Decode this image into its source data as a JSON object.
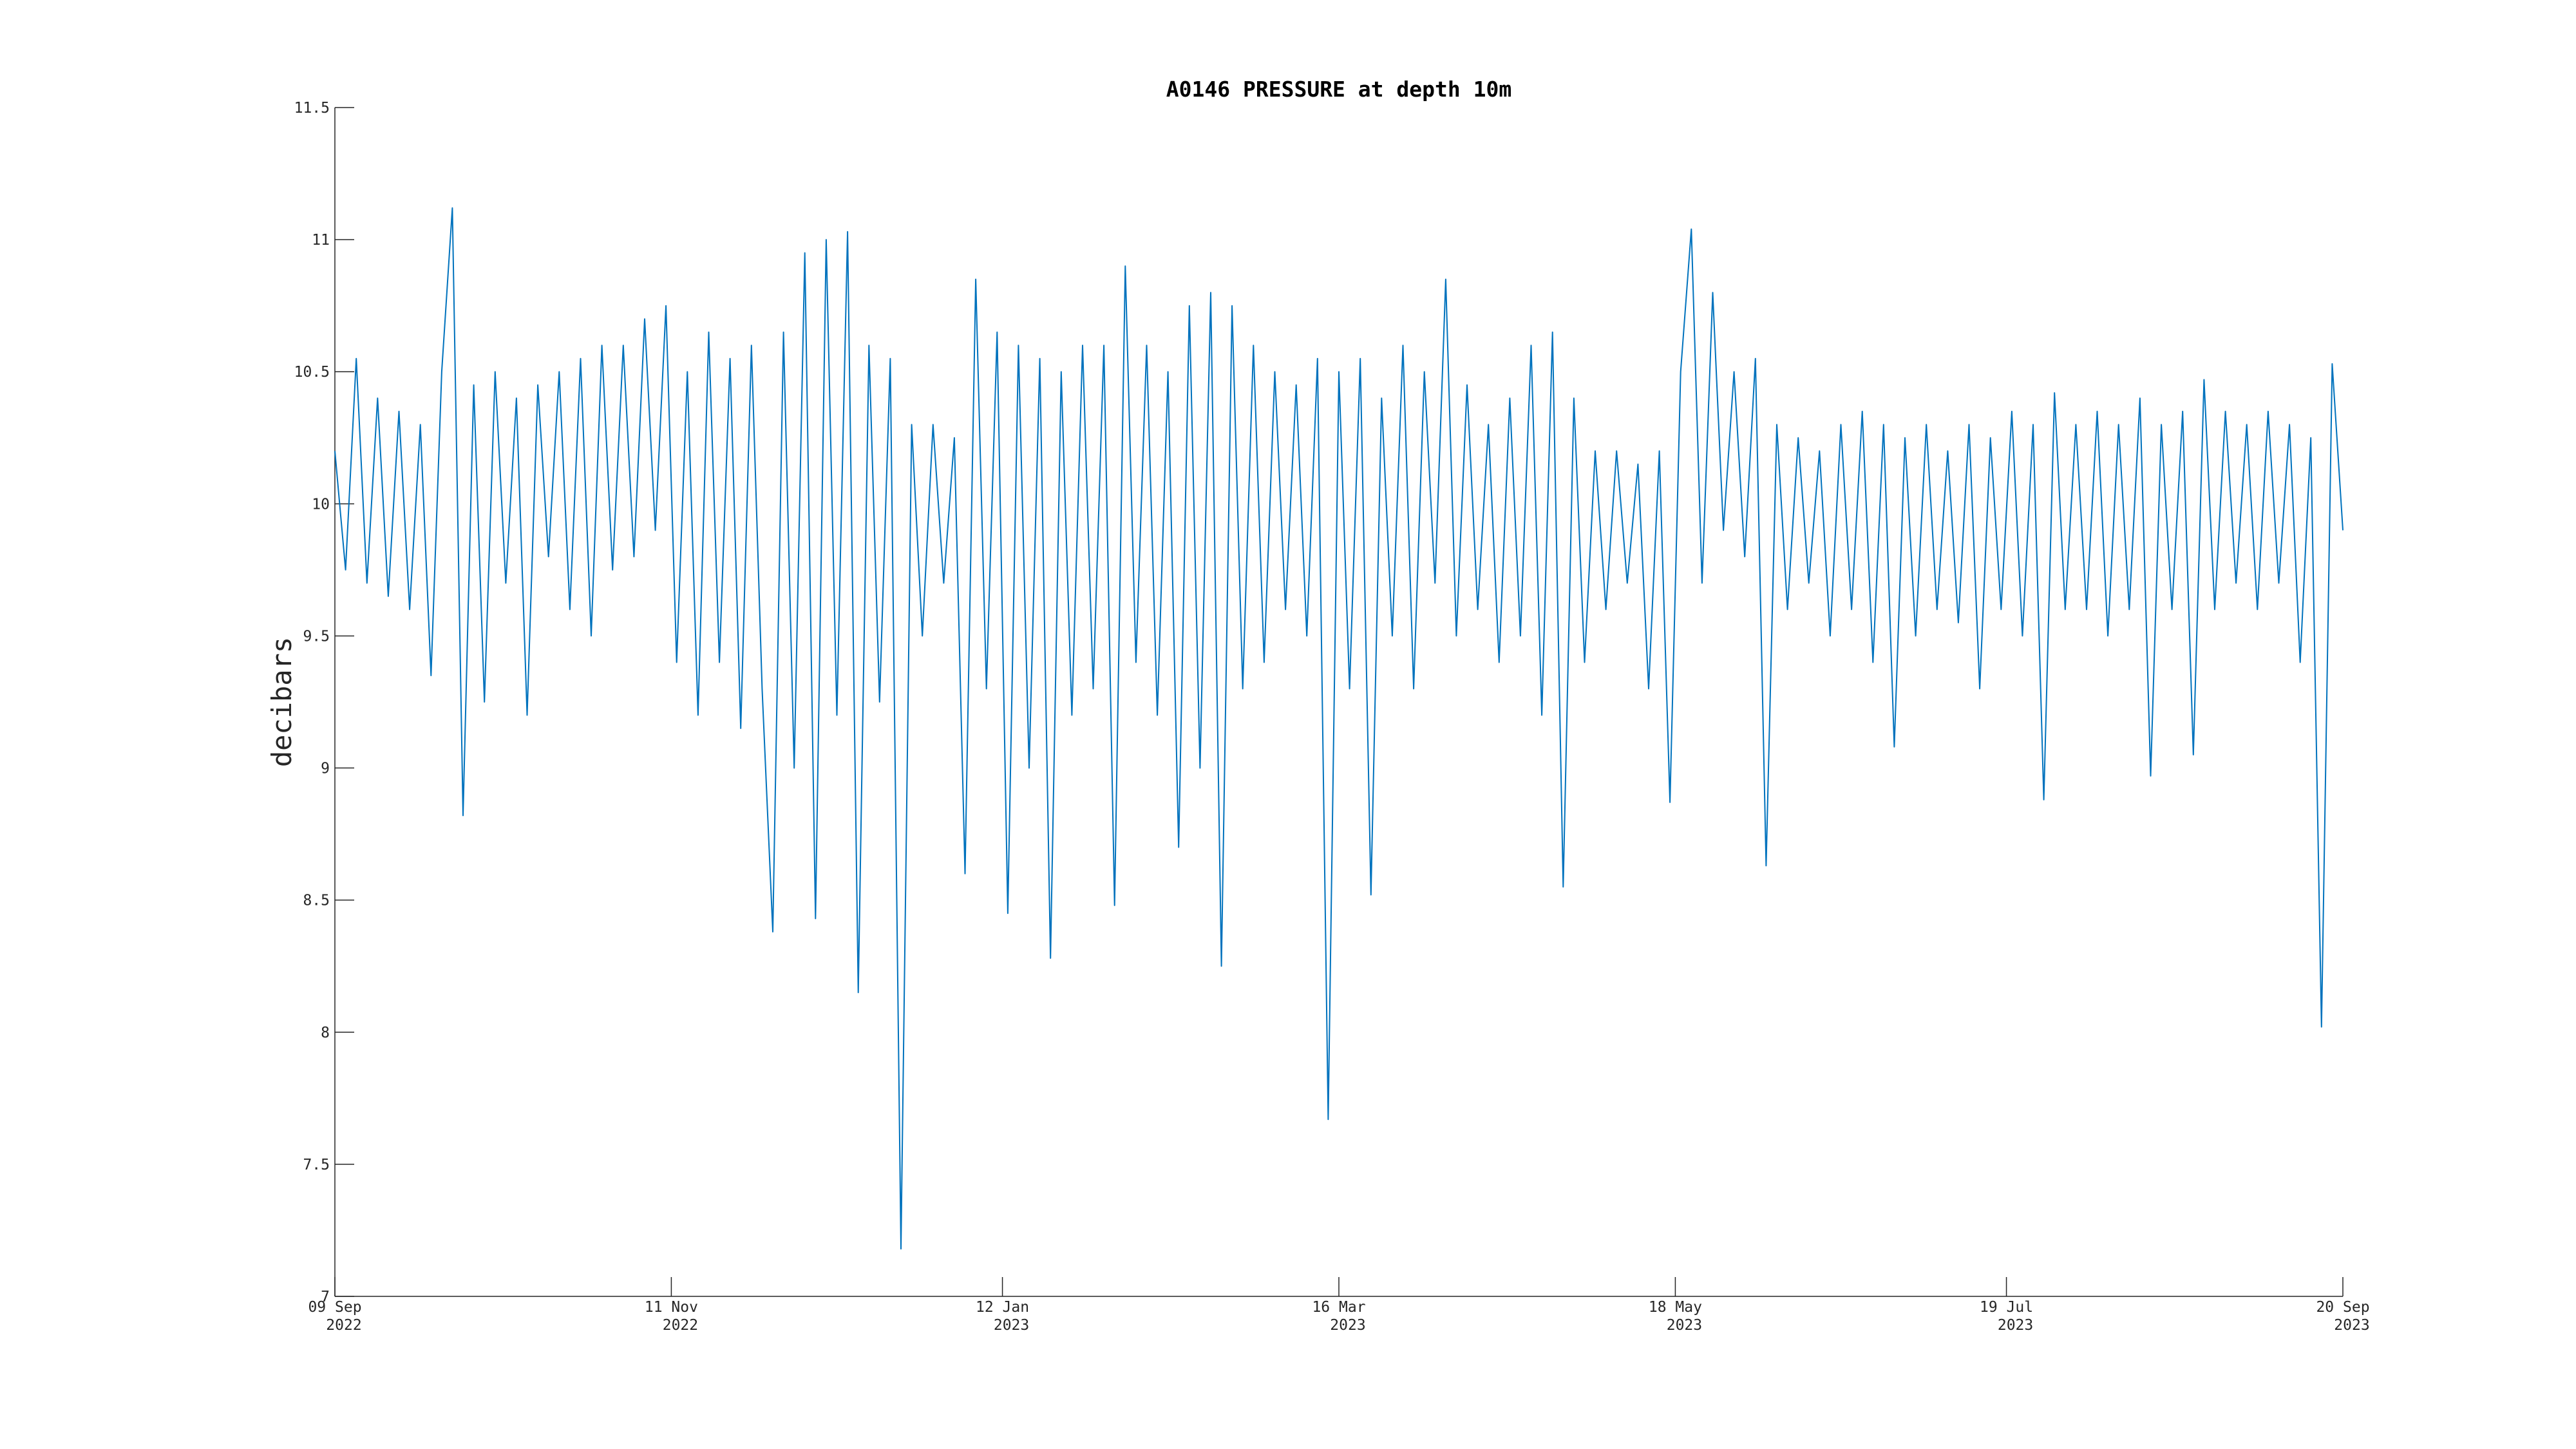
{
  "chart_data": {
    "type": "line",
    "title": "A0146 PRESSURE at depth 10m",
    "y_label": "decibars",
    "color": "#0072bd",
    "xlim": [
      "2022-09-09",
      "2023-09-20"
    ],
    "xticks": [
      {
        "value": "2022-09-09",
        "label": [
          "09 Sep",
          "2022"
        ]
      },
      {
        "value": "2022-11-11",
        "label": [
          "11 Nov",
          "2022"
        ]
      },
      {
        "value": "2023-01-12",
        "label": [
          "12 Jan",
          "2023"
        ]
      },
      {
        "value": "2023-03-16",
        "label": [
          "16 Mar",
          "2023"
        ]
      },
      {
        "value": "2023-05-18",
        "label": [
          "18 May",
          "2023"
        ]
      },
      {
        "value": "2023-07-19",
        "label": [
          "19 Jul",
          "2023"
        ]
      },
      {
        "value": "2023-09-20",
        "label": [
          "20 Sep",
          "2023"
        ]
      }
    ],
    "ylim": [
      7,
      11.5
    ],
    "yticks": [
      7,
      7.5,
      8,
      8.5,
      9,
      9.5,
      10,
      10.5,
      11,
      11.5
    ],
    "x": [
      "2022-09-09",
      "2022-09-11",
      "2022-09-13",
      "2022-09-15",
      "2022-09-17",
      "2022-09-19",
      "2022-09-21",
      "2022-09-23",
      "2022-09-25",
      "2022-09-27",
      "2022-09-29",
      "2022-10-01",
      "2022-10-03",
      "2022-10-05",
      "2022-10-07",
      "2022-10-09",
      "2022-10-11",
      "2022-10-13",
      "2022-10-15",
      "2022-10-17",
      "2022-10-19",
      "2022-10-21",
      "2022-10-23",
      "2022-10-25",
      "2022-10-27",
      "2022-10-29",
      "2022-10-31",
      "2022-11-02",
      "2022-11-04",
      "2022-11-06",
      "2022-11-08",
      "2022-11-10",
      "2022-11-12",
      "2022-11-14",
      "2022-11-16",
      "2022-11-18",
      "2022-11-20",
      "2022-11-22",
      "2022-11-24",
      "2022-11-26",
      "2022-11-28",
      "2022-11-30",
      "2022-12-02",
      "2022-12-04",
      "2022-12-06",
      "2022-12-08",
      "2022-12-10",
      "2022-12-12",
      "2022-12-14",
      "2022-12-16",
      "2022-12-18",
      "2022-12-20",
      "2022-12-22",
      "2022-12-24",
      "2022-12-26",
      "2022-12-28",
      "2022-12-30",
      "2023-01-01",
      "2023-01-03",
      "2023-01-05",
      "2023-01-07",
      "2023-01-09",
      "2023-01-11",
      "2023-01-13",
      "2023-01-15",
      "2023-01-17",
      "2023-01-19",
      "2023-01-21",
      "2023-01-23",
      "2023-01-25",
      "2023-01-27",
      "2023-01-29",
      "2023-01-31",
      "2023-02-02",
      "2023-02-04",
      "2023-02-06",
      "2023-02-08",
      "2023-02-10",
      "2023-02-12",
      "2023-02-14",
      "2023-02-16",
      "2023-02-18",
      "2023-02-20",
      "2023-02-22",
      "2023-02-24",
      "2023-02-26",
      "2023-02-28",
      "2023-03-02",
      "2023-03-04",
      "2023-03-06",
      "2023-03-08",
      "2023-03-10",
      "2023-03-12",
      "2023-03-14",
      "2023-03-16",
      "2023-03-18",
      "2023-03-20",
      "2023-03-22",
      "2023-03-24",
      "2023-03-26",
      "2023-03-28",
      "2023-03-30",
      "2023-04-01",
      "2023-04-03",
      "2023-04-05",
      "2023-04-07",
      "2023-04-09",
      "2023-04-11",
      "2023-04-13",
      "2023-04-15",
      "2023-04-17",
      "2023-04-19",
      "2023-04-21",
      "2023-04-23",
      "2023-04-25",
      "2023-04-27",
      "2023-04-29",
      "2023-05-01",
      "2023-05-03",
      "2023-05-05",
      "2023-05-07",
      "2023-05-09",
      "2023-05-11",
      "2023-05-13",
      "2023-05-15",
      "2023-05-17",
      "2023-05-19",
      "2023-05-21",
      "2023-05-23",
      "2023-05-25",
      "2023-05-27",
      "2023-05-29",
      "2023-05-31",
      "2023-06-02",
      "2023-06-04",
      "2023-06-06",
      "2023-06-08",
      "2023-06-10",
      "2023-06-12",
      "2023-06-14",
      "2023-06-16",
      "2023-06-18",
      "2023-06-20",
      "2023-06-22",
      "2023-06-24",
      "2023-06-26",
      "2023-06-28",
      "2023-06-30",
      "2023-07-02",
      "2023-07-04",
      "2023-07-06",
      "2023-07-08",
      "2023-07-10",
      "2023-07-12",
      "2023-07-14",
      "2023-07-16",
      "2023-07-18",
      "2023-07-20",
      "2023-07-22",
      "2023-07-24",
      "2023-07-26",
      "2023-07-28",
      "2023-07-30",
      "2023-08-01",
      "2023-08-03",
      "2023-08-05",
      "2023-08-07",
      "2023-08-09",
      "2023-08-11",
      "2023-08-13",
      "2023-08-15",
      "2023-08-17",
      "2023-08-19",
      "2023-08-21",
      "2023-08-23",
      "2023-08-25",
      "2023-08-27",
      "2023-08-29",
      "2023-08-31",
      "2023-09-02",
      "2023-09-04",
      "2023-09-06",
      "2023-09-08",
      "2023-09-10",
      "2023-09-12",
      "2023-09-14",
      "2023-09-16",
      "2023-09-18",
      "2023-09-20"
    ],
    "values": [
      10.2,
      9.75,
      10.55,
      9.7,
      10.4,
      9.65,
      10.35,
      9.6,
      10.3,
      9.35,
      10.5,
      11.12,
      8.82,
      10.45,
      9.25,
      10.5,
      9.7,
      10.4,
      9.2,
      10.45,
      9.8,
      10.5,
      9.6,
      10.55,
      9.5,
      10.6,
      9.75,
      10.6,
      9.8,
      10.7,
      9.9,
      10.75,
      9.4,
      10.5,
      9.2,
      10.65,
      9.4,
      10.55,
      9.15,
      10.6,
      9.3,
      8.38,
      10.65,
      9.0,
      10.95,
      8.43,
      11.0,
      9.2,
      11.03,
      8.15,
      10.6,
      9.25,
      10.55,
      7.18,
      10.3,
      9.5,
      10.3,
      9.7,
      10.25,
      8.6,
      10.85,
      9.3,
      10.65,
      8.45,
      10.6,
      9.0,
      10.55,
      8.28,
      10.5,
      9.2,
      10.6,
      9.3,
      10.6,
      8.48,
      10.9,
      9.4,
      10.6,
      9.2,
      10.5,
      8.7,
      10.75,
      9.0,
      10.8,
      8.25,
      10.75,
      9.3,
      10.6,
      9.4,
      10.5,
      9.6,
      10.45,
      9.5,
      10.55,
      7.67,
      10.5,
      9.3,
      10.55,
      8.52,
      10.4,
      9.5,
      10.6,
      9.3,
      10.5,
      9.7,
      10.85,
      9.5,
      10.45,
      9.6,
      10.3,
      9.4,
      10.4,
      9.5,
      10.6,
      9.2,
      10.65,
      8.55,
      10.4,
      9.4,
      10.2,
      9.6,
      10.2,
      9.7,
      10.15,
      9.3,
      10.2,
      8.87,
      10.5,
      11.04,
      9.7,
      10.8,
      9.9,
      10.5,
      9.8,
      10.55,
      8.63,
      10.3,
      9.6,
      10.25,
      9.7,
      10.2,
      9.5,
      10.3,
      9.6,
      10.35,
      9.4,
      10.3,
      9.08,
      10.25,
      9.5,
      10.3,
      9.6,
      10.2,
      9.55,
      10.3,
      9.3,
      10.25,
      9.6,
      10.35,
      9.5,
      10.3,
      8.88,
      10.42,
      9.6,
      10.3,
      9.6,
      10.35,
      9.5,
      10.3,
      9.6,
      10.4,
      8.97,
      10.3,
      9.6,
      10.35,
      9.05,
      10.47,
      9.6,
      10.35,
      9.7,
      10.3,
      9.6,
      10.35,
      9.7,
      10.3,
      9.4,
      10.25,
      8.02,
      10.53,
      9.9
    ]
  }
}
